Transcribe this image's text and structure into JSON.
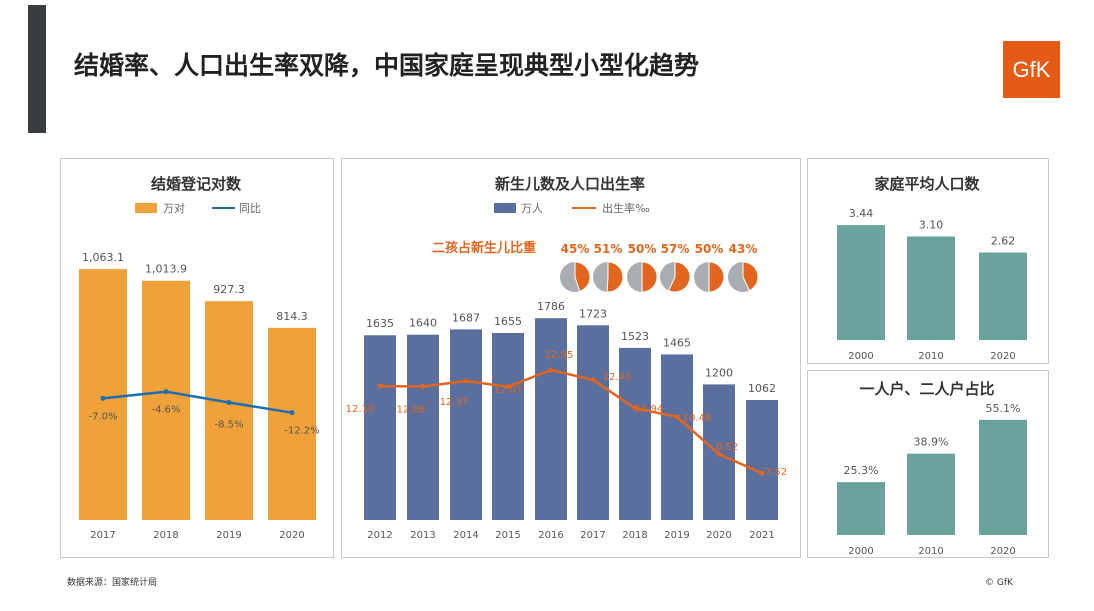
{
  "title": "结婚率、人口出生率双降，中国家庭呈现典型小型化趋势",
  "logo": "GfK",
  "source": "数据来源：国家统计局",
  "copyright": "© GfK",
  "chart_data": [
    {
      "type": "bar",
      "title": "结婚登记对数",
      "legend": [
        "万对",
        "同比"
      ],
      "categories": [
        "2017",
        "2018",
        "2019",
        "2020"
      ],
      "series": [
        {
          "name": "万对",
          "values": [
            1063.1,
            1013.9,
            927.3,
            814.3
          ],
          "labels": [
            "1,063.1",
            "1,013.9",
            "927.3",
            "814.3"
          ],
          "color": "#f0a23a"
        },
        {
          "name": "同比",
          "type": "line",
          "values": [
            -7.0,
            -4.6,
            -8.5,
            -12.2
          ],
          "labels": [
            "-7.0%",
            "-4.6%",
            "-8.5%",
            "-12.2%"
          ],
          "color": "#1f6fb0"
        }
      ]
    },
    {
      "type": "bar",
      "title": "新生儿数及人口出生率",
      "legend": [
        "万人",
        "出生率‰"
      ],
      "categories": [
        "2012",
        "2013",
        "2014",
        "2015",
        "2016",
        "2017",
        "2018",
        "2019",
        "2020",
        "2021"
      ],
      "series": [
        {
          "name": "万人",
          "values": [
            1635,
            1640,
            1687,
            1655,
            1786,
            1723,
            1523,
            1465,
            1200,
            1062
          ],
          "color": "#5a6f9e"
        },
        {
          "name": "出生率‰",
          "type": "line",
          "values": [
            12.1,
            12.08,
            12.37,
            12.07,
            12.95,
            12.43,
            10.94,
            10.48,
            8.52,
            7.52
          ],
          "color": "#e2661e"
        }
      ],
      "inset": {
        "title": "二孩占新生儿比重",
        "values": [
          45,
          51,
          50,
          57,
          50,
          43
        ],
        "labels": [
          "45%",
          "51%",
          "50%",
          "57%",
          "50%",
          "43%"
        ]
      }
    },
    {
      "type": "bar",
      "title": "家庭平均人口数",
      "categories": [
        "2000",
        "2010",
        "2020"
      ],
      "values": [
        3.44,
        3.1,
        2.62
      ],
      "labels": [
        "3.44",
        "3.10",
        "2.62"
      ],
      "color": "#6aa39d"
    },
    {
      "type": "bar",
      "title": "一人户、二人户占比",
      "categories": [
        "2000",
        "2010",
        "2020"
      ],
      "values": [
        25.3,
        38.9,
        55.1
      ],
      "labels": [
        "25.3%",
        "38.9%",
        "55.1%"
      ],
      "color": "#6aa39d"
    }
  ]
}
